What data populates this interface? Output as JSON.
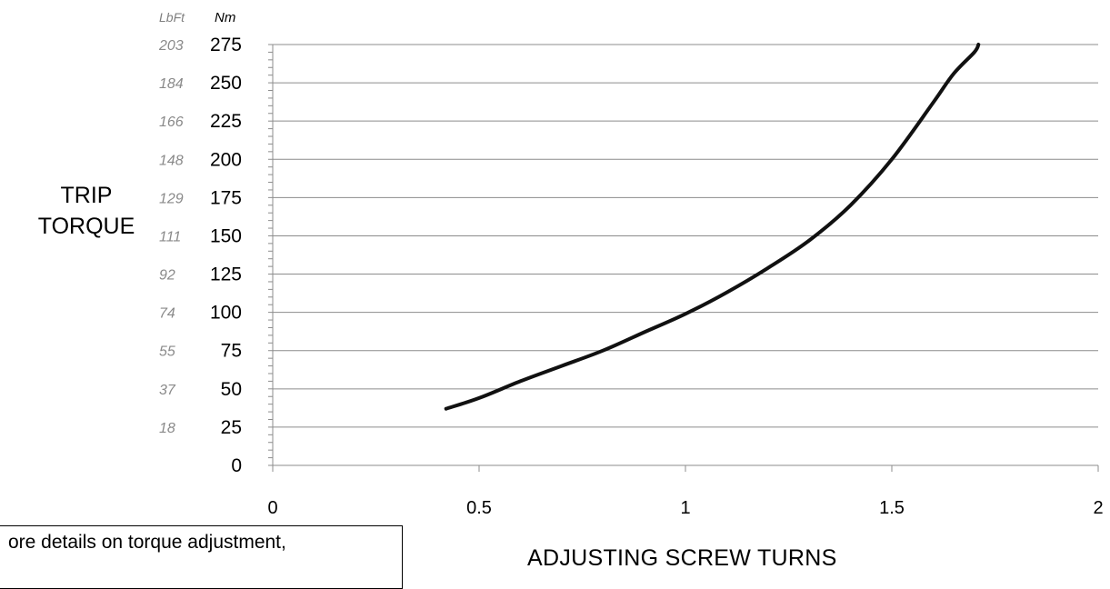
{
  "chart_data": {
    "type": "line",
    "xlabel": "ADJUSTING SCREW TURNS",
    "ylabel_lines": [
      "TRIP",
      "TORQUE"
    ],
    "y_units": {
      "primary": "Nm",
      "secondary": "LbFt"
    },
    "xlim": [
      0,
      2
    ],
    "ylim": [
      0,
      275
    ],
    "x_ticks": [
      "0",
      "0.5",
      "1",
      "1.5",
      "2"
    ],
    "x_tick_values": [
      0,
      0.5,
      1,
      1.5,
      2
    ],
    "y_ticks_nm": [
      "0",
      "25",
      "50",
      "75",
      "100",
      "125",
      "150",
      "175",
      "200",
      "225",
      "250",
      "275"
    ],
    "y_tick_values": [
      0,
      25,
      50,
      75,
      100,
      125,
      150,
      175,
      200,
      225,
      250,
      275
    ],
    "y_ticks_lbft": [
      "",
      "18",
      "37",
      "55",
      "74",
      "92",
      "111",
      "129",
      "148",
      "166",
      "184",
      "203"
    ],
    "grid": "horizontal",
    "series": [
      {
        "x": [
          0.42,
          0.5,
          0.6,
          0.7,
          0.8,
          0.9,
          1.0,
          1.1,
          1.2,
          1.3,
          1.4,
          1.5,
          1.6,
          1.65,
          1.7,
          1.71
        ],
        "y": [
          37,
          44,
          55,
          65,
          75,
          87,
          99,
          113,
          129,
          147,
          170,
          200,
          237,
          256,
          270,
          275
        ]
      }
    ]
  },
  "note": {
    "text": "ore details on torque adjustment,"
  }
}
